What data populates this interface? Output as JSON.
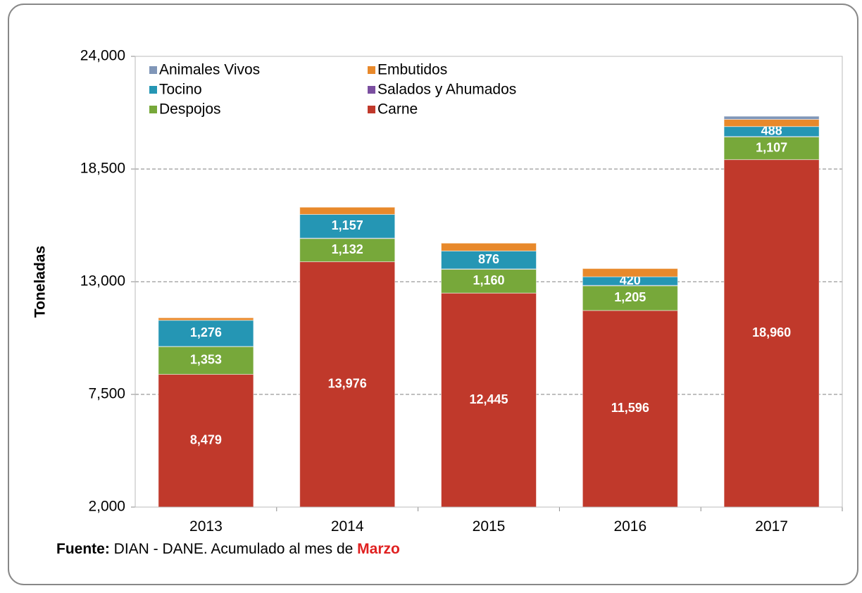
{
  "chart_data": {
    "type": "bar",
    "stacked": true,
    "y_label": "Toneladas",
    "categories": [
      "2013",
      "2014",
      "2015",
      "2016",
      "2017"
    ],
    "series": [
      {
        "name": "Carne",
        "color": "#c0392b",
        "values": [
          8479,
          13976,
          12445,
          11596,
          18960
        ],
        "value_labels": [
          "8,479",
          "13,976",
          "12,445",
          "11,596",
          "18,960"
        ]
      },
      {
        "name": "Despojos",
        "color": "#77a83a",
        "values": [
          1353,
          1132,
          1160,
          1205,
          1107
        ],
        "value_labels": [
          "1,353",
          "1,132",
          "1,160",
          "1,205",
          "1,107"
        ]
      },
      {
        "name": "Salados y Ahumados",
        "color": "#7b4fa0",
        "values": [
          10,
          20,
          20,
          20,
          20
        ]
      },
      {
        "name": "Tocino",
        "color": "#2596b4",
        "values": [
          1276,
          1157,
          876,
          420,
          488
        ],
        "value_labels": [
          "1,276",
          "1,157",
          "876",
          "420",
          "488"
        ]
      },
      {
        "name": "Embutidos",
        "color": "#e8892b",
        "values": [
          120,
          350,
          380,
          400,
          350
        ]
      },
      {
        "name": "Animales Vivos",
        "color": "#8096b8",
        "values": [
          0,
          0,
          0,
          0,
          150
        ]
      }
    ],
    "ylim": [
      2000,
      24000
    ],
    "yticks": [
      {
        "value": 2000,
        "label": "2,000"
      },
      {
        "value": 7500,
        "label": "7,500"
      },
      {
        "value": 13000,
        "label": "13,000"
      },
      {
        "value": 18500,
        "label": "18,500"
      },
      {
        "value": 24000,
        "label": "24,000"
      }
    ],
    "grid": true,
    "source": {
      "label": "Fuente:",
      "text": "DIAN - DANE. Acumulado al mes de",
      "highlight": "Marzo",
      "highlight_color": "#e02020"
    }
  }
}
